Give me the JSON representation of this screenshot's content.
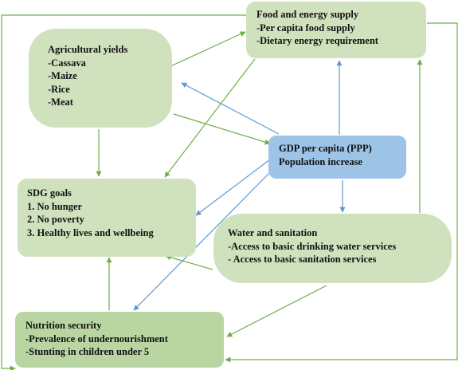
{
  "boxes": {
    "food": {
      "title": "Food and energy supply",
      "items": [
        "-Per capita food supply",
        "-Dietary energy requirement"
      ]
    },
    "agricultural": {
      "title": "Agricultural yields",
      "items": [
        "-Cassava",
        "-Maize",
        "-Rice",
        "-Meat"
      ]
    },
    "gdp": {
      "title": "GDP per capita (PPP)",
      "items": [
        "Population increase"
      ]
    },
    "sdg": {
      "title": "SDG goals",
      "items": [
        "1. No hunger",
        "2. No poverty",
        "3. Healthy lives and wellbeing"
      ]
    },
    "water": {
      "title": "Water and sanitation",
      "items": [
        "-Access to basic drinking water services",
        "- Access to basic sanitation services"
      ]
    },
    "nutrition": {
      "title": "Nutrition security",
      "items": [
        "-Prevalence of undernourishment",
        "-Stunting in children under 5"
      ]
    }
  },
  "colors": {
    "box_green": "#cfe2bd",
    "box_green_dark": "#b9d6a2",
    "box_blue": "#9dc3e6",
    "arrow_green": "#6fae47",
    "arrow_blue": "#5b9bd5",
    "frame_green": "#70ad47"
  }
}
